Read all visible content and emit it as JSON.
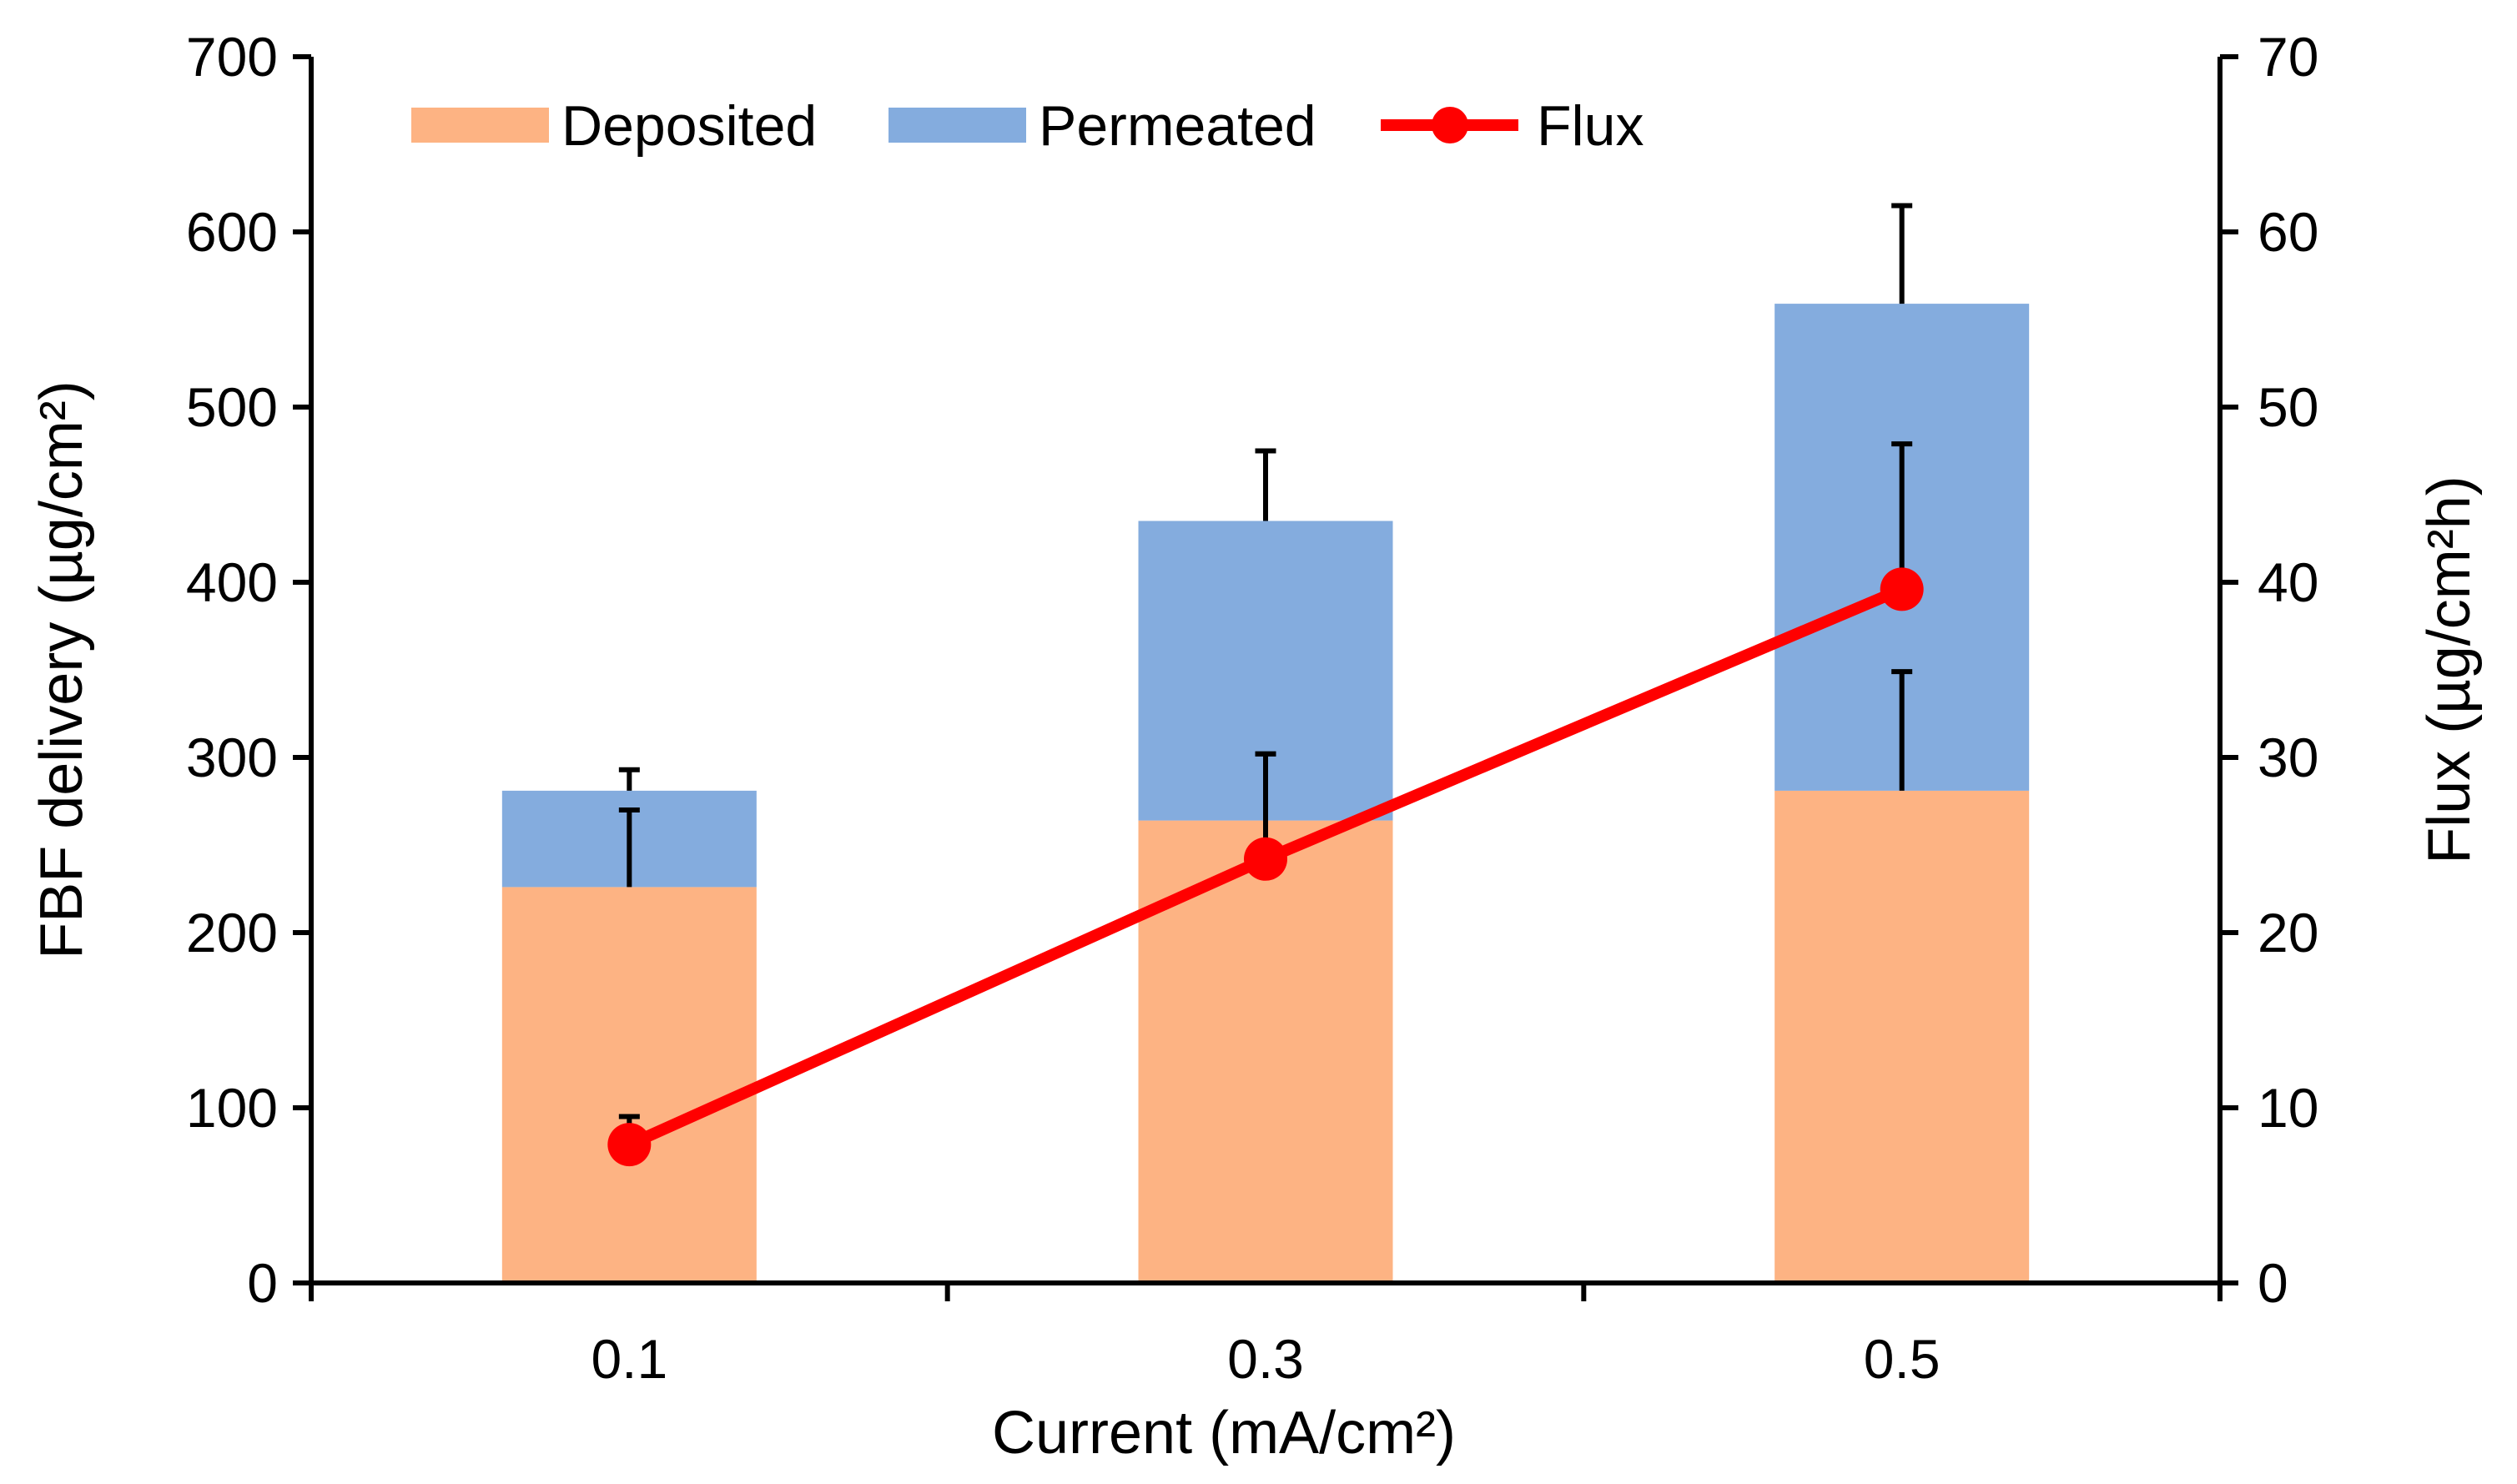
{
  "chart_data": {
    "type": "bar",
    "stacked": true,
    "categories": [
      "0.1",
      "0.3",
      "0.5"
    ],
    "xlabel": "Current (mA/cm²)",
    "ylabel": "FBF delivery (µg/cm²)",
    "y2label": "Flux (µg/cm²h)",
    "ylim": [
      0,
      700
    ],
    "y2lim": [
      0,
      70
    ],
    "yticks": [
      "0",
      "100",
      "200",
      "300",
      "400",
      "500",
      "600",
      "700"
    ],
    "y2ticks": [
      "0",
      "10",
      "20",
      "30",
      "40",
      "50",
      "60",
      "70"
    ],
    "grid": false,
    "legend_position": "top-left",
    "series": [
      {
        "name": "Deposited",
        "type": "bar",
        "color": "#FDB383",
        "values": [
          226,
          264,
          281
        ],
        "error": [
          44,
          38,
          68
        ]
      },
      {
        "name": "Permeated",
        "type": "bar",
        "color": "#84ACDE",
        "values": [
          55,
          171,
          278
        ],
        "error": [
          12,
          40,
          56
        ]
      },
      {
        "name": "Flux",
        "type": "line",
        "axis": "right",
        "color": "#FF0000",
        "values": [
          7.9,
          24.2,
          39.6
        ],
        "error": [
          1.6,
          6.0,
          8.3
        ]
      }
    ]
  }
}
